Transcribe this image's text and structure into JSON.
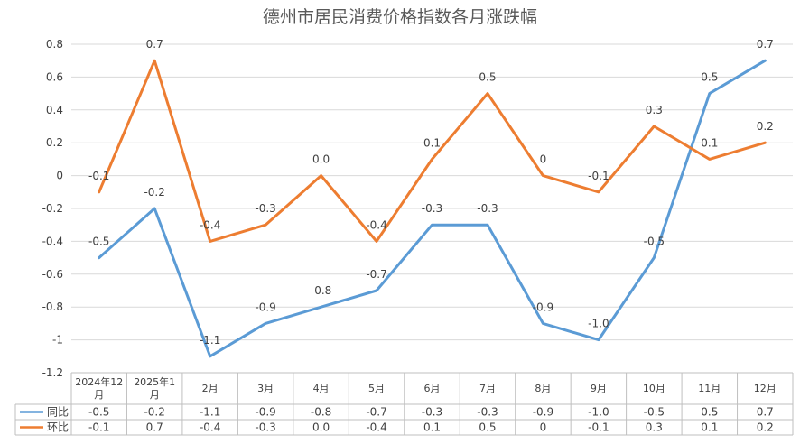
{
  "chart_data": {
    "type": "line",
    "title": "德州市居民消费价格指数各月涨跌幅",
    "categories": [
      [
        "2024年12",
        "月"
      ],
      [
        "2025年1",
        "月"
      ],
      [
        "2月"
      ],
      [
        "3月"
      ],
      [
        "4月"
      ],
      [
        "5月"
      ],
      [
        "6月"
      ],
      [
        "7月"
      ],
      [
        "8月"
      ],
      [
        "9月"
      ],
      [
        "10月"
      ],
      [
        "11月"
      ],
      [
        "12月"
      ]
    ],
    "y_ticks": [
      "0.8",
      "0.6",
      "0.4",
      "0.2",
      "0",
      "-0.2",
      "-0.4",
      "-0.6",
      "-0.8",
      "-1",
      "-1.2"
    ],
    "ylim": [
      -1.2,
      0.8
    ],
    "grid": true,
    "legend": "data-table",
    "series": [
      {
        "name": "同比",
        "color": "#5b9bd5",
        "values": [
          -0.5,
          -0.2,
          -1.1,
          -0.9,
          -0.8,
          -0.7,
          -0.3,
          -0.3,
          -0.9,
          -1.0,
          -0.5,
          0.5,
          0.7
        ],
        "labels": [
          "-0.5",
          "-0.2",
          "-1.1",
          "-0.9",
          "-0.8",
          "-0.7",
          "-0.3",
          "-0.3",
          "-0.9",
          "-1.0",
          "-0.5",
          "0.5",
          "0.7"
        ]
      },
      {
        "name": "环比",
        "color": "#ed7d31",
        "values": [
          -0.1,
          0.7,
          -0.4,
          -0.3,
          0.0,
          -0.4,
          0.1,
          0.5,
          0,
          -0.1,
          0.3,
          0.1,
          0.2
        ],
        "labels": [
          "-0.1",
          "0.7",
          "-0.4",
          "-0.3",
          "0.0",
          "-0.4",
          "0.1",
          "0.5",
          "0",
          "-0.1",
          "0.3",
          "0.1",
          "0.2"
        ]
      }
    ]
  }
}
